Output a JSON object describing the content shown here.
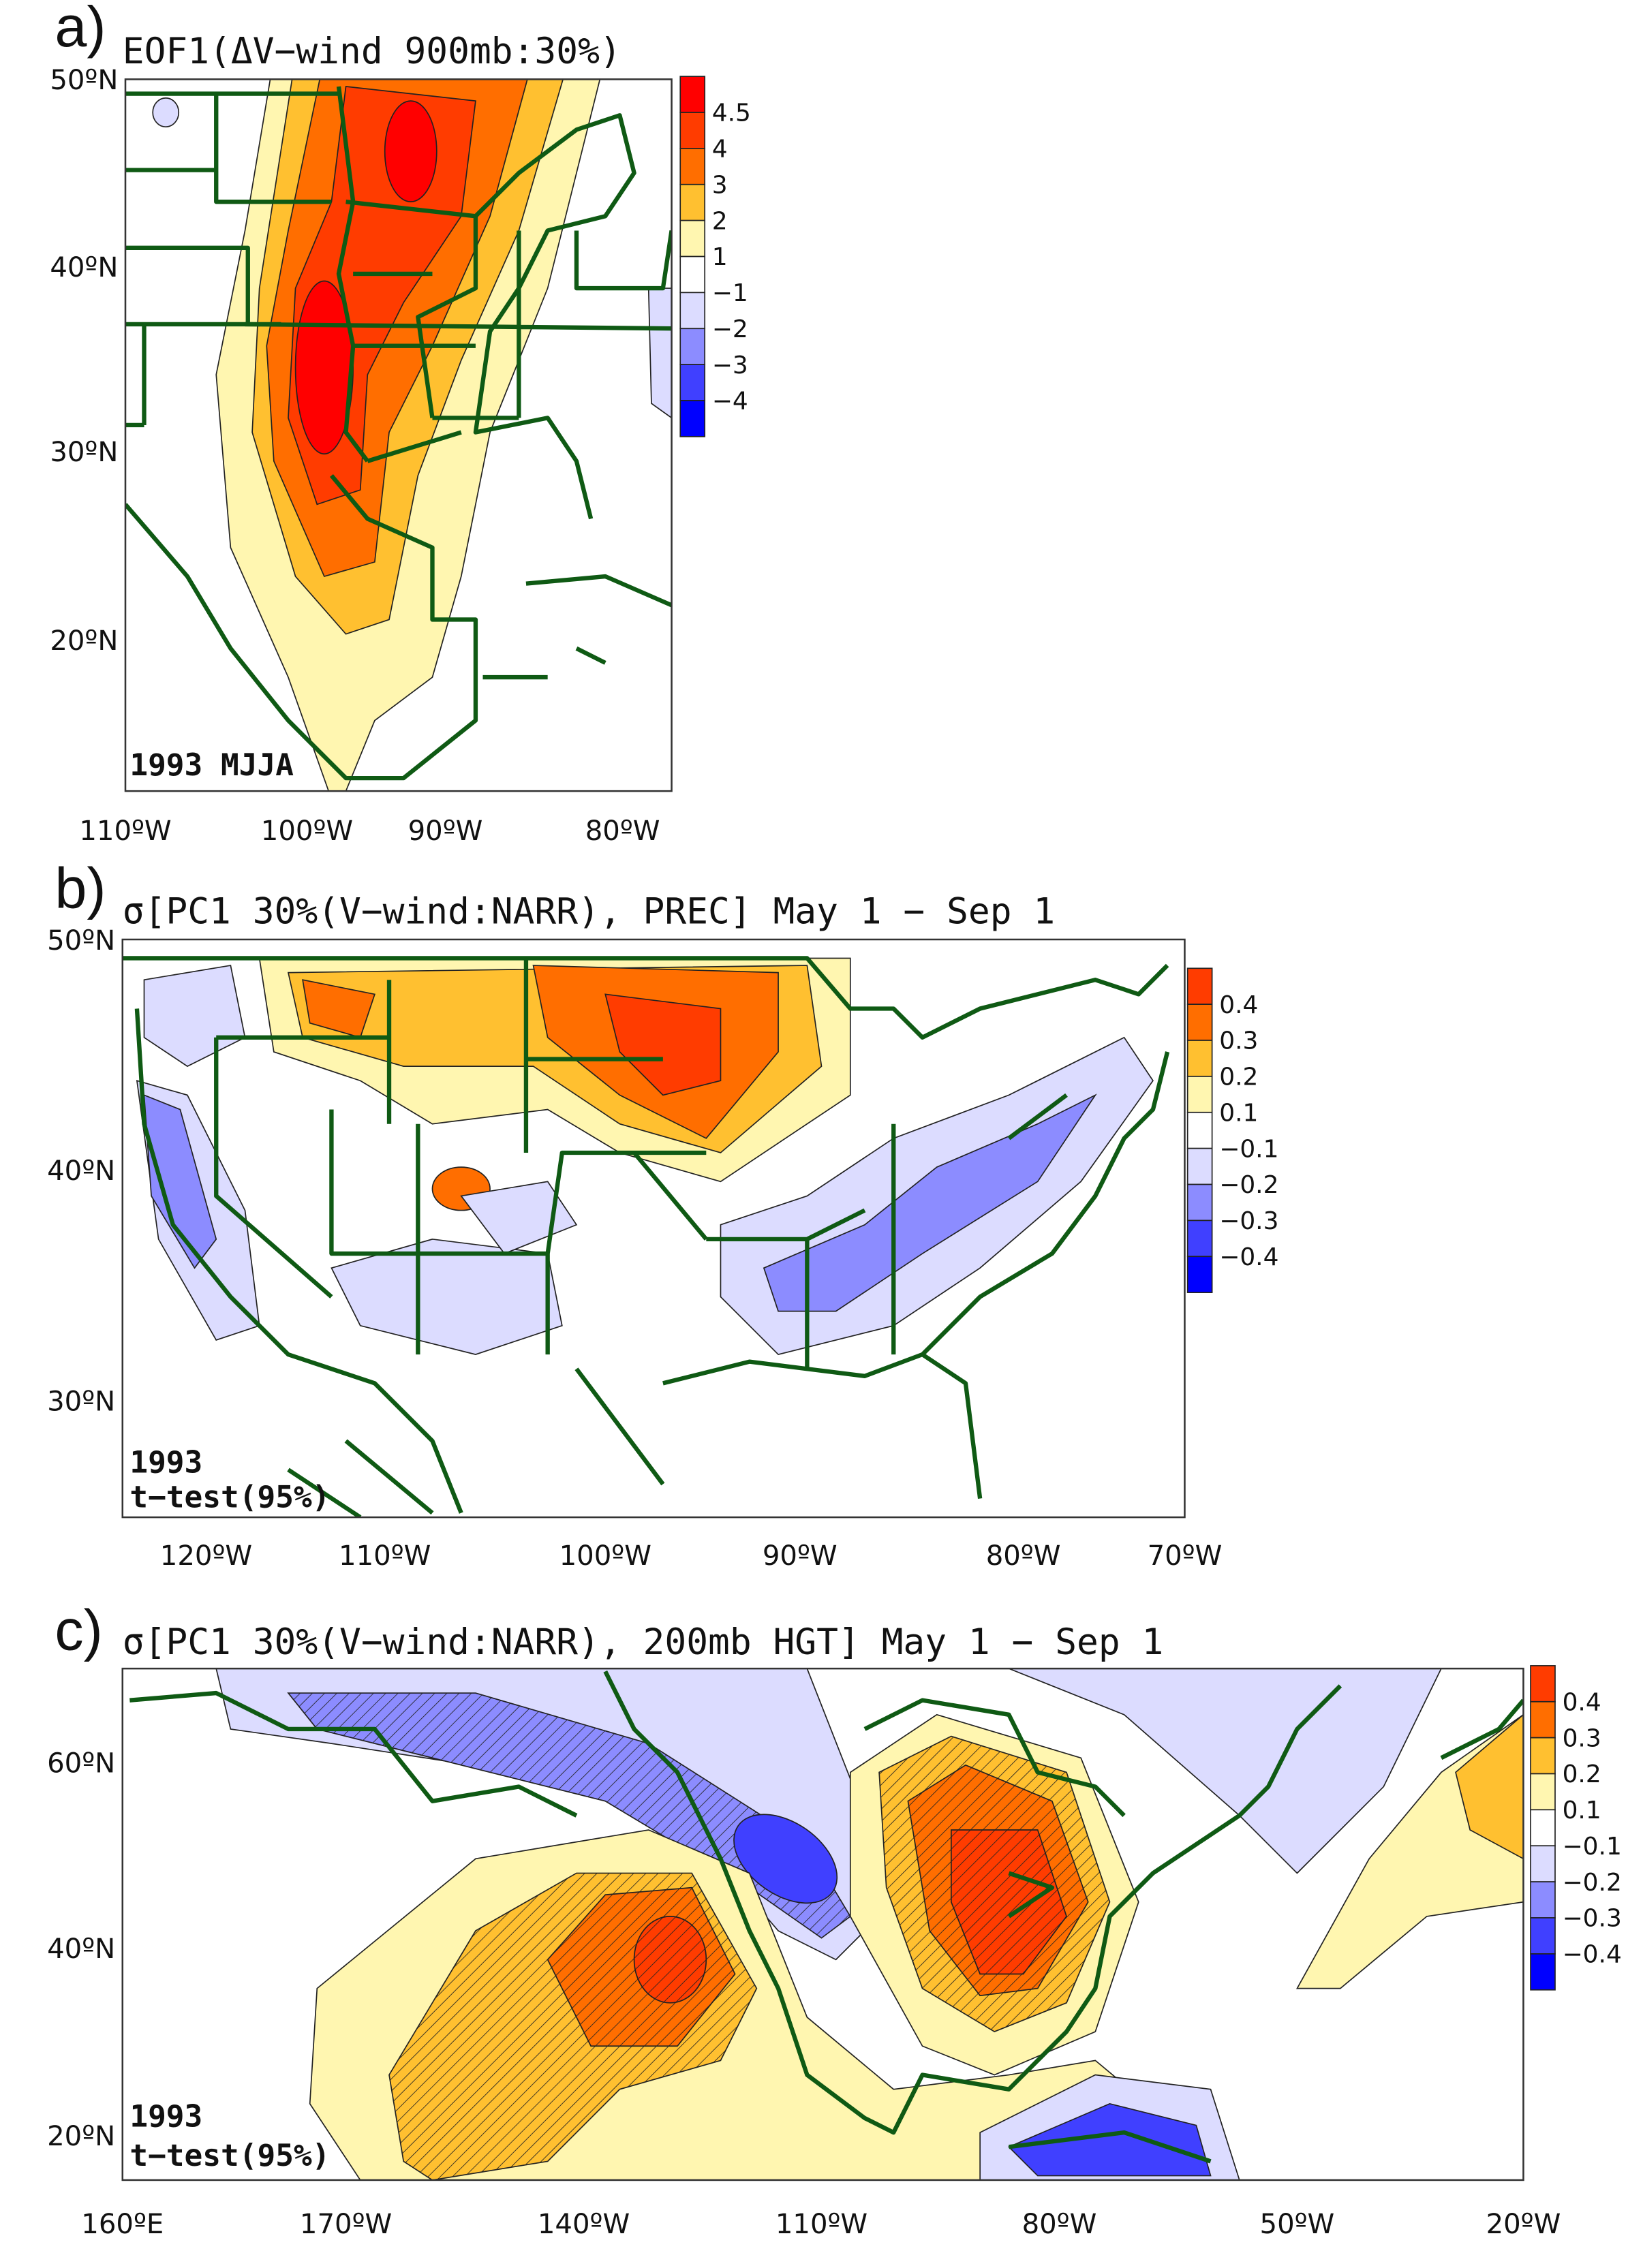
{
  "colors": {
    "pos5": "#ff0000",
    "pos4": "#ff3c00",
    "pos3": "#ff6e00",
    "pos2": "#ffc030",
    "pos1": "#fff6b0",
    "zero": "#ffffff",
    "neg1": "#dcdcff",
    "neg2": "#8c8cff",
    "neg3": "#4040ff",
    "neg4": "#0000ff",
    "coast": "#0f5a14"
  },
  "panel_a": {
    "label": "a)",
    "title": "EOF1(ΔV−wind 900mb:30%)",
    "annotation": "1993 MJJA",
    "lat_ticks": [
      "50ºN",
      "40ºN",
      "30ºN",
      "20ºN"
    ],
    "lon_ticks": [
      "110ºW",
      "100ºW",
      "90ºW",
      "80ºW"
    ],
    "colorbar": [
      "4.5",
      "4",
      "3",
      "2",
      "1",
      "−1",
      "−2",
      "−3",
      "−4"
    ]
  },
  "panel_b": {
    "label": "b)",
    "title": "σ[PC1 30%(V−wind:NARR), PREC] May 1 − Sep 1",
    "annotation_year": "1993",
    "annotation_test": "t−test(95%)",
    "lat_ticks": [
      "50ºN",
      "40ºN",
      "30ºN"
    ],
    "lon_ticks": [
      "120ºW",
      "110ºW",
      "100ºW",
      "90ºW",
      "80ºW",
      "70ºW"
    ],
    "colorbar": [
      "0.4",
      "0.3",
      "0.2",
      "0.1",
      "−0.1",
      "−0.2",
      "−0.3",
      "−0.4"
    ]
  },
  "panel_c": {
    "label": "c)",
    "title": "σ[PC1 30%(V−wind:NARR), 200mb HGT] May 1 − Sep 1",
    "annotation_year": "1993",
    "annotation_test": "t−test(95%)",
    "lat_ticks": [
      "60ºN",
      "40ºN",
      "20ºN"
    ],
    "lon_ticks": [
      "160ºE",
      "170ºW",
      "140ºW",
      "110ºW",
      "80ºW",
      "50ºW",
      "20ºW"
    ],
    "colorbar": [
      "0.4",
      "0.3",
      "0.2",
      "0.1",
      "−0.1",
      "−0.2",
      "−0.3",
      "−0.4"
    ]
  }
}
